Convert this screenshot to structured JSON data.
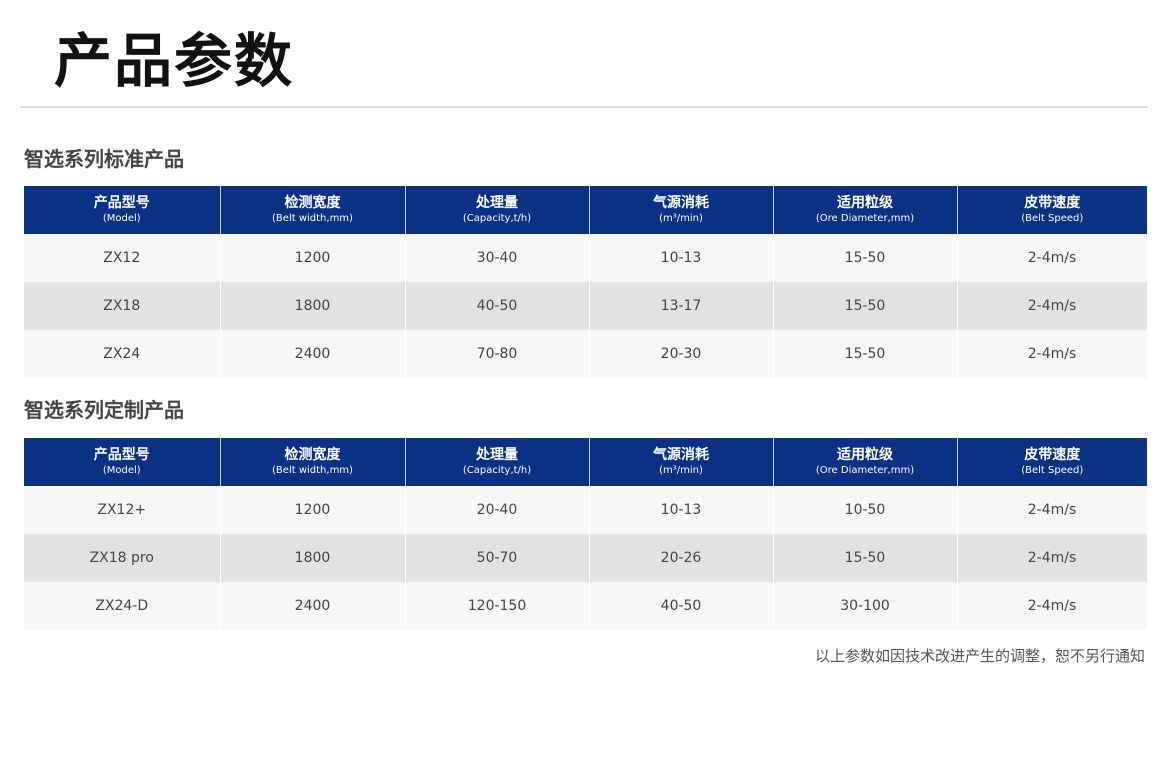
{
  "title": "产品参数",
  "columns": [
    {
      "cn": "产品型号",
      "en": "(Model)"
    },
    {
      "cn": "检测宽度",
      "en": "(Belt width,mm)"
    },
    {
      "cn": "处理量",
      "en": "(Capacity,t/h)"
    },
    {
      "cn": "气源消耗",
      "en": "(m³/min)"
    },
    {
      "cn": "适用粒级",
      "en": "(Ore Diameter,mm)"
    },
    {
      "cn": "皮带速度",
      "en": "(Belt Speed)"
    }
  ],
  "sections": [
    {
      "title": "智选系列标准产品",
      "rows": [
        [
          "ZX12",
          "1200",
          "30-40",
          "10-13",
          "15-50",
          "2-4m/s"
        ],
        [
          "ZX18",
          "1800",
          "40-50",
          "13-17",
          "15-50",
          "2-4m/s"
        ],
        [
          "ZX24",
          "2400",
          "70-80",
          "20-30",
          "15-50",
          "2-4m/s"
        ]
      ]
    },
    {
      "title": "智选系列定制产品",
      "rows": [
        [
          "ZX12+",
          "1200",
          "20-40",
          "10-13",
          "10-50",
          "2-4m/s"
        ],
        [
          "ZX18 pro",
          "1800",
          "50-70",
          "20-26",
          "15-50",
          "2-4m/s"
        ],
        [
          "ZX24-D",
          "2400",
          "120-150",
          "40-50",
          "30-100",
          "2-4m/s"
        ]
      ]
    }
  ],
  "note": "以上参数如因技术改进产生的调整，恕不另行通知",
  "colors": {
    "header_bg": "#0b3185",
    "row_light": "#f7f7f7",
    "row_dark": "#e2e2e2"
  }
}
